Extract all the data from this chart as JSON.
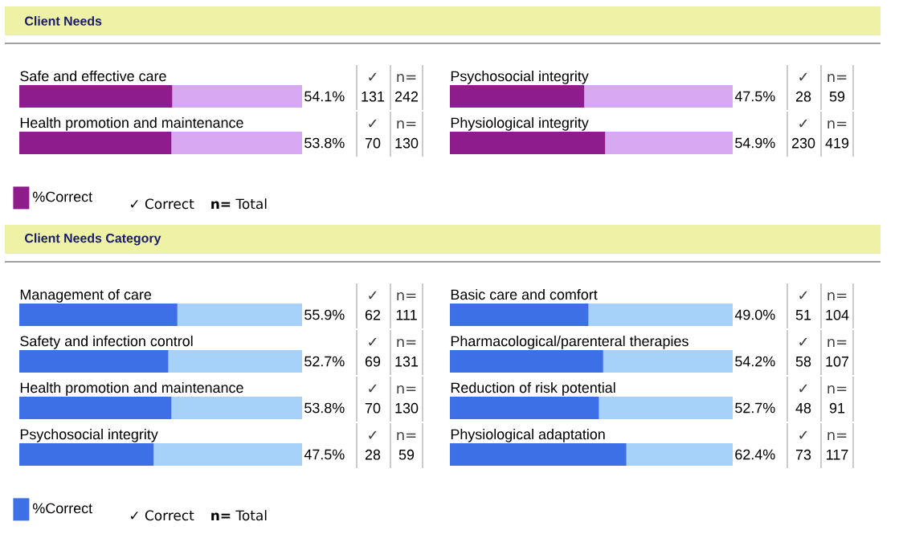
{
  "chart_data": [
    {
      "type": "bar",
      "orientation": "horizontal",
      "stacked": true,
      "title": "Client Needs",
      "categories": [
        "Safe and effective care",
        "Health promotion and maintenance"
      ],
      "xlim": [
        0,
        100
      ],
      "legend": "bottom left",
      "series": [
        {
          "name": "%Correct",
          "color": "#8e1c8c",
          "values": [
            54.1,
            53.8
          ],
          "value_labels": [
            "54.1%",
            "53.8%"
          ]
        },
        {
          "color": "#d9a8f2",
          "values": [
            45.9,
            46.2
          ]
        }
      ],
      "annotations": [
        "✓",
        "131",
        "n=",
        "242",
        "✓",
        "70",
        "n=",
        "130",
        "✓ Correct",
        "**n=** Total"
      ]
    },
    {
      "type": "bar",
      "orientation": "horizontal",
      "stacked": true,
      "categories": [
        "Psychosocial integrity",
        "Physiological integrity"
      ],
      "xlim": [
        0,
        100
      ],
      "series": [
        {
          "color": "#8e1c8c",
          "values": [
            47.5,
            54.9
          ],
          "value_labels": [
            "47.5%",
            "54.9%"
          ]
        },
        {
          "color": "#d9a8f2",
          "values": [
            52.5,
            45.1
          ]
        }
      ],
      "annotations": [
        "✓",
        "28",
        "n=",
        "59",
        "✓",
        "230",
        "n=",
        "419"
      ]
    },
    {
      "type": "bar",
      "orientation": "horizontal",
      "stacked": true,
      "title": "Client Needs Category",
      "categories": [
        "Management of care",
        "Safety and infection control",
        "Health promotion and maintenance",
        "Psychosocial integrity"
      ],
      "xlim": [
        0,
        100
      ],
      "legend": "bottom left",
      "series": [
        {
          "name": "%Correct",
          "color": "#3d6fe6",
          "values": [
            55.9,
            52.7,
            53.8,
            47.5
          ],
          "value_labels": [
            "55.9%",
            "52.7%",
            "53.8%",
            "47.5%"
          ]
        },
        {
          "color": "#a6d2fa",
          "values": [
            44.1,
            47.3,
            46.2,
            52.5
          ]
        }
      ],
      "annotations": [
        "✓",
        "62",
        "n=",
        "111",
        "✓",
        "69",
        "n=",
        "131",
        "✓",
        "70",
        "n=",
        "130",
        "✓",
        "28",
        "n=",
        "59",
        "✓ Correct",
        "**n=** Total"
      ]
    },
    {
      "type": "bar",
      "orientation": "horizontal",
      "stacked": true,
      "categories": [
        "Basic care and comfort",
        "Pharmacological/parenteral therapies",
        "Reduction of risk potential",
        "Physiological adaptation"
      ],
      "xlim": [
        0,
        100
      ],
      "series": [
        {
          "color": "#3d6fe6",
          "values": [
            49.0,
            54.2,
            52.7,
            62.4
          ],
          "value_labels": [
            "49.0%",
            "54.2%",
            "52.7%",
            "62.4%"
          ]
        },
        {
          "color": "#a6d2fa",
          "values": [
            51.0,
            45.8,
            47.3,
            37.6
          ]
        }
      ],
      "annotations": [
        "✓",
        "51",
        "n=",
        "104",
        "✓",
        "58",
        "n=",
        "107",
        "✓",
        "48",
        "n=",
        "91",
        "✓",
        "73",
        "n=",
        "117"
      ]
    }
  ]
}
